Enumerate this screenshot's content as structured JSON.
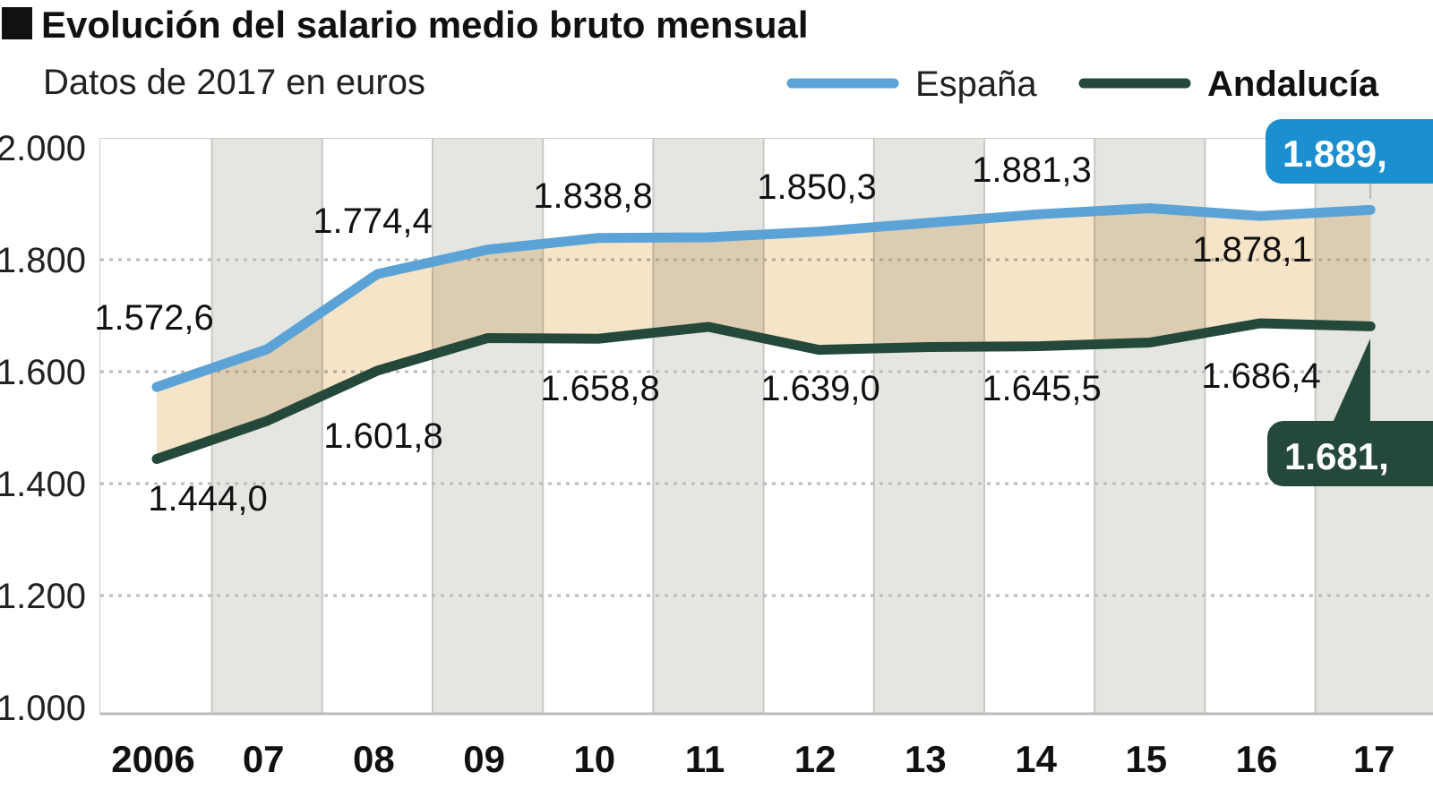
{
  "chart_data": {
    "type": "area",
    "title": "Evolución del salario medio bruto mensual",
    "subtitle": "Datos de 2017 en euros",
    "categories": [
      "2006",
      "07",
      "08",
      "09",
      "10",
      "11",
      "12",
      "13",
      "14",
      "15",
      "16",
      "17"
    ],
    "yticks": [
      "1.000",
      "1.200",
      "1.400",
      "1.600",
      "1.800",
      "2.000"
    ],
    "ytick_values": [
      1000,
      1200,
      1400,
      1600,
      1800,
      2000
    ],
    "ylim": [
      1000,
      2000
    ],
    "grid": "horizontal dotted",
    "legend_position": "top-right",
    "series": [
      {
        "name": "España",
        "color": "#5ba3d6",
        "values": [
          1572.6,
          1640,
          1774.4,
          1818,
          1838.8,
          1840,
          1850.3,
          1866,
          1881.3,
          1892,
          1878.1,
          1889
        ],
        "labels": [
          {
            "index": 0,
            "text": "1.572,6"
          },
          {
            "index": 2,
            "text": "1.774,4"
          },
          {
            "index": 4,
            "text": "1.838,8"
          },
          {
            "index": 6,
            "text": "1.850,3"
          },
          {
            "index": 8,
            "text": "1.881,3"
          },
          {
            "index": 10,
            "text": "1.878,1"
          }
        ],
        "badge": "1.889,",
        "badge_color": "#1b8fcf"
      },
      {
        "name": "Andalucía",
        "color": "#24493a",
        "values": [
          1444.0,
          1512,
          1601.8,
          1660,
          1658.8,
          1680,
          1639.0,
          1644,
          1645.5,
          1652,
          1686.4,
          1681
        ],
        "labels": [
          {
            "index": 0,
            "text": "1.444,0"
          },
          {
            "index": 2,
            "text": "1.601,8"
          },
          {
            "index": 4,
            "text": "1.658,8"
          },
          {
            "index": 6,
            "text": "1.639,0"
          },
          {
            "index": 8,
            "text": "1.645,5"
          },
          {
            "index": 10,
            "text": "1.686,4"
          }
        ],
        "badge": "1.681,",
        "badge_color": "#24493a"
      }
    ],
    "fill_between_color": "#f2dbb6",
    "alt_column_color": "#e5e5e2"
  }
}
